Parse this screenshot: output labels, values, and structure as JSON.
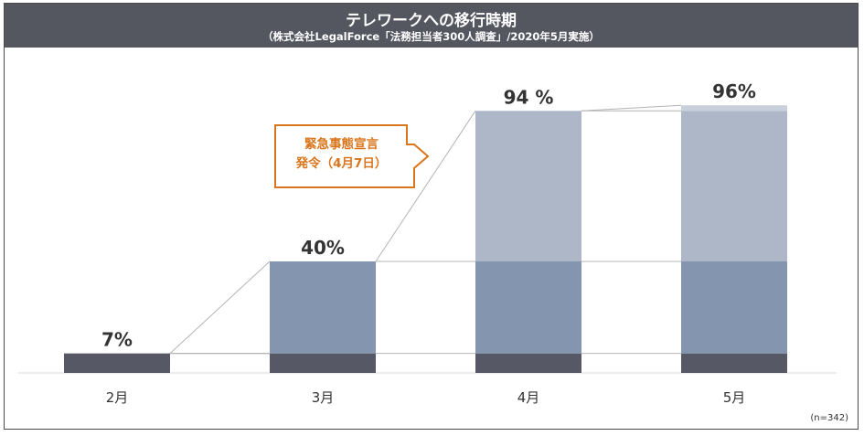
{
  "header": {
    "title": "テレワークへの移行時期",
    "subtitle": "（株式会社LegalForce「法務担当者300人調査」/2020年5月実施）"
  },
  "callout": {
    "line1": "緊急事態宣言",
    "line2": "発令（4月7日）"
  },
  "note": "(n=342)",
  "colors": {
    "header_bg": "#545660",
    "segment_dark": "#565965",
    "segment_mid": "#8496af",
    "segment_light": "#adb7c8",
    "callout": "#d9751c",
    "connector": "#b4b4b4"
  },
  "chart_data": {
    "type": "bar",
    "stacked": true,
    "categories": [
      "2月",
      "3月",
      "4月",
      "5月"
    ],
    "totals": [
      7,
      40,
      94,
      96
    ],
    "total_labels": [
      "7%",
      "40%",
      "94 %",
      "96%"
    ],
    "series": [
      {
        "values": [
          7,
          7,
          7,
          7
        ],
        "color": "#565965"
      },
      {
        "values": [
          0,
          33,
          33,
          33
        ],
        "color": "#8496af"
      },
      {
        "values": [
          0,
          0,
          54,
          54
        ],
        "color": "#adb7c8"
      },
      {
        "values": [
          0,
          0,
          0,
          2
        ],
        "color": "#c8d0dc"
      }
    ],
    "ylim": [
      0,
      100
    ],
    "grid": false
  }
}
